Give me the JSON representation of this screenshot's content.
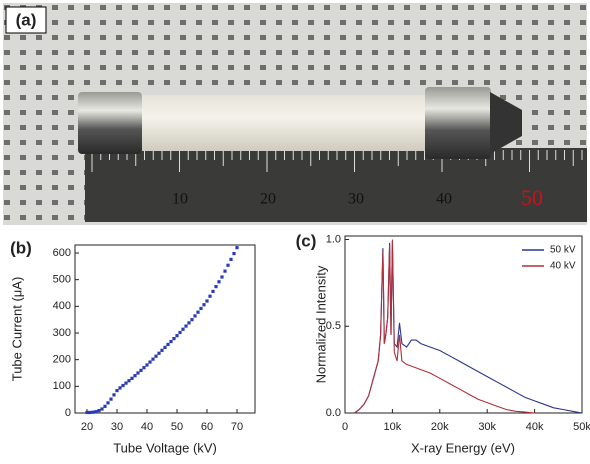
{
  "photo": {
    "label": "(a)",
    "ruler_labels": [
      "10",
      "20",
      "30",
      "40",
      "50"
    ]
  },
  "chart_data": [
    {
      "type": "scatter",
      "label": "(b)",
      "x_label": "Tube Voltage (kV)",
      "y_label": "Tube Current (μA)",
      "color": "#2a3bb8",
      "x": [
        20,
        21,
        22,
        23,
        24,
        25,
        26,
        27,
        28,
        29,
        30,
        31,
        32,
        33,
        34,
        35,
        36,
        37,
        38,
        39,
        40,
        41,
        42,
        43,
        44,
        45,
        46,
        47,
        48,
        49,
        50,
        51,
        52,
        53,
        54,
        55,
        56,
        57,
        58,
        59,
        60,
        61,
        62,
        63,
        64,
        65,
        66,
        67,
        68,
        69,
        70
      ],
      "values": [
        2,
        2,
        3,
        5,
        9,
        15,
        25,
        38,
        52,
        68,
        84,
        94,
        103,
        112,
        121,
        130,
        140,
        150,
        160,
        170,
        180,
        191,
        202,
        213,
        224,
        235,
        246,
        257,
        268,
        279,
        290,
        302,
        314,
        326,
        338,
        350,
        364,
        378,
        392,
        406,
        420,
        438,
        456,
        474,
        492,
        510,
        532,
        554,
        576,
        598,
        620
      ],
      "xlim": [
        16,
        76
      ],
      "ylim": [
        0,
        630
      ],
      "xticks": [
        20,
        30,
        40,
        50,
        60,
        70
      ],
      "yticks": [
        0,
        100,
        200,
        300,
        400,
        500,
        600
      ],
      "grid": false
    },
    {
      "type": "line",
      "label": "(c)",
      "x_label": "X-ray Energy (eV)",
      "y_label": "Normalized Intensity",
      "legend": "top-right",
      "x": [
        2000,
        3000,
        4000,
        5000,
        6000,
        7000,
        7500,
        8000,
        8300,
        8600,
        9000,
        9400,
        9700,
        10000,
        10400,
        11000,
        11500,
        12000,
        13000,
        14000,
        15000,
        16000,
        18000,
        20000,
        22000,
        24000,
        26000,
        28000,
        30000,
        32000,
        34000,
        36000,
        38000,
        40000,
        42000,
        44000,
        46000,
        48000,
        50000
      ],
      "series": [
        {
          "name": "50 kV",
          "color": "#2b3590",
          "values": [
            0,
            0.02,
            0.05,
            0.1,
            0.2,
            0.3,
            0.45,
            0.95,
            0.4,
            0.45,
            0.55,
            0.98,
            0.45,
            0.99,
            0.4,
            0.38,
            0.52,
            0.4,
            0.38,
            0.42,
            0.42,
            0.4,
            0.38,
            0.36,
            0.33,
            0.3,
            0.27,
            0.24,
            0.21,
            0.18,
            0.15,
            0.12,
            0.09,
            0.07,
            0.05,
            0.03,
            0.02,
            0.01,
            0
          ]
        },
        {
          "name": "40 kV",
          "color": "#b0303a",
          "values": [
            0,
            0.02,
            0.05,
            0.1,
            0.2,
            0.3,
            0.45,
            0.93,
            0.4,
            0.45,
            0.55,
            0.97,
            0.45,
            1.0,
            0.35,
            0.3,
            0.45,
            0.3,
            0.28,
            0.27,
            0.26,
            0.25,
            0.23,
            0.2,
            0.17,
            0.14,
            0.11,
            0.08,
            0.06,
            0.04,
            0.02,
            0.01,
            0.005,
            0,
            null,
            null,
            null,
            null,
            null
          ]
        }
      ],
      "xlim": [
        0,
        50000
      ],
      "ylim": [
        0,
        1.02
      ],
      "xticks": [
        {
          "value": 0,
          "label": "0"
        },
        {
          "value": 10000,
          "label": "10k"
        },
        {
          "value": 20000,
          "label": "20k"
        },
        {
          "value": 30000,
          "label": "30k"
        },
        {
          "value": 40000,
          "label": "40k"
        },
        {
          "value": 50000,
          "label": "50k"
        }
      ],
      "yticks": [
        {
          "value": 0,
          "label": "0.0"
        },
        {
          "value": 0.5,
          "label": "0.5"
        },
        {
          "value": 1.0,
          "label": "1.0"
        }
      ],
      "grid": false
    }
  ]
}
